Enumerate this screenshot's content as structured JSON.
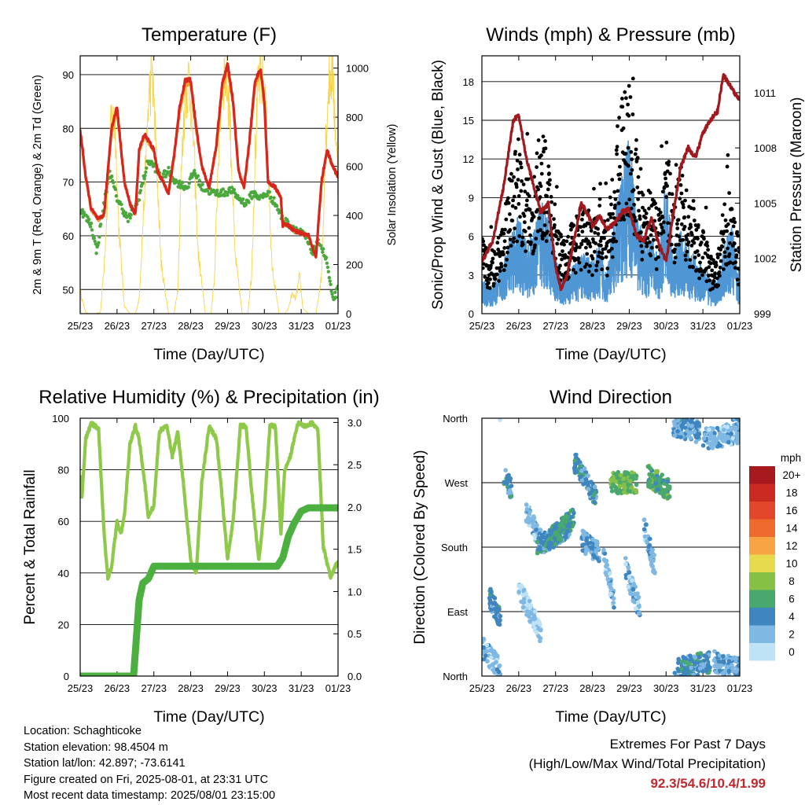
{
  "x_ticks": [
    "25/23",
    "26/23",
    "27/23",
    "28/23",
    "29/23",
    "30/23",
    "31/23",
    "01/23"
  ],
  "info": {
    "location": "Location: Schaghticoke",
    "elevation": "Station elevation: 98.4504 m",
    "latlon": "Station lat/lon: 42.897; -73.6141",
    "created": "Figure created on Fri, 2025-08-01, at 23:31 UTC",
    "recent": "Most recent data timestamp: 2025/08/01 23:15:00"
  },
  "extremes": {
    "line1": "Extremes For Past 7 Days",
    "line2": "(High/Low/Max Wind/Total Precipitation)",
    "values": "92.3/54.6/10.4/1.99"
  },
  "chart_data": [
    {
      "id": "temperature",
      "type": "line",
      "title": "Temperature (F)",
      "xlabel": "Time (Day/UTC)",
      "ylabel": "2m & 9m T (Red, Orange) & 2m Td (Green)",
      "y2label": "Solar Insolation (Yellow)",
      "x_range_days": [
        0,
        7
      ],
      "ylim": [
        45.5,
        93.5
      ],
      "y_ticks": [
        50,
        60,
        70,
        80,
        90
      ],
      "y2lim": [
        0,
        1050
      ],
      "y2_ticks": [
        0,
        200,
        400,
        600,
        800,
        1000
      ],
      "grid": true,
      "colors": {
        "t2m": "#d7261e",
        "t9m": "#f39c34",
        "td": "#4aa83d",
        "solar": "#f7d54a"
      },
      "series": [
        {
          "key": "t2m",
          "x": [
            0,
            0.05,
            0.15,
            0.3,
            0.5,
            0.65,
            0.85,
            1.0,
            1.2,
            1.35,
            1.5,
            1.6,
            1.75,
            2.0,
            2.1,
            2.4,
            2.55,
            2.7,
            2.85,
            3.0,
            3.15,
            3.3,
            3.5,
            3.7,
            3.85,
            4.0,
            4.15,
            4.3,
            4.45,
            4.6,
            4.75,
            4.9,
            5.0,
            5.1,
            5.3,
            5.45,
            5.5,
            5.65,
            5.8,
            6.0,
            6.2,
            6.4,
            6.55,
            6.7,
            6.85,
            7.0
          ],
          "values": [
            79.5,
            77,
            71,
            65,
            63,
            64,
            80,
            84,
            70,
            66,
            64,
            76,
            79,
            76,
            72,
            68,
            75,
            84,
            89,
            89,
            80,
            73,
            69,
            77,
            88,
            92,
            85,
            72,
            69,
            78,
            89,
            91,
            85,
            70,
            69,
            67,
            62,
            62,
            61,
            60.5,
            60,
            56,
            70,
            76,
            73,
            71
          ]
        },
        {
          "key": "t9m",
          "x": [
            0,
            0.05,
            0.15,
            0.3,
            0.5,
            0.65,
            0.85,
            1.0,
            1.2,
            1.35,
            1.5,
            1.6,
            1.75,
            2.0,
            2.1,
            2.4,
            2.55,
            2.7,
            2.85,
            3.0,
            3.15,
            3.3,
            3.5,
            3.7,
            3.85,
            4.0,
            4.15,
            4.3,
            4.45,
            4.6,
            4.75,
            4.9,
            5.0,
            5.1,
            5.3,
            5.45,
            5.5,
            5.65,
            5.8,
            6.0,
            6.2,
            6.4,
            6.55,
            6.7,
            6.85,
            7.0
          ],
          "values": [
            79,
            76.5,
            70.5,
            64.8,
            63,
            63.8,
            79,
            83,
            70,
            66,
            64,
            75.5,
            78.5,
            75.8,
            72,
            68,
            74.5,
            83,
            88,
            88.5,
            79.5,
            73,
            69,
            76.5,
            87,
            91,
            84.5,
            72,
            69,
            77.5,
            88,
            90.5,
            84.5,
            70,
            69,
            67,
            62,
            62,
            61,
            60.5,
            60,
            56,
            69.5,
            75.5,
            73,
            71
          ]
        },
        {
          "key": "td",
          "x": [
            0,
            0.1,
            0.3,
            0.45,
            0.6,
            0.8,
            1.0,
            1.3,
            1.55,
            1.7,
            1.85,
            2.0,
            2.2,
            2.4,
            2.6,
            2.9,
            3.1,
            3.3,
            3.6,
            3.9,
            4.1,
            4.3,
            4.5,
            4.7,
            4.9,
            5.1,
            5.3,
            5.5,
            5.7,
            5.9,
            6.1,
            6.3,
            6.4,
            6.5,
            6.7,
            6.85,
            7.0
          ],
          "values": [
            65,
            64,
            62,
            57,
            64,
            72,
            67,
            63,
            66,
            70,
            74,
            73,
            71,
            72,
            70,
            69,
            72,
            69,
            68,
            68,
            68.5,
            67,
            66,
            68,
            67,
            68,
            66,
            63,
            62,
            61,
            60,
            57,
            58,
            59,
            55,
            48,
            50
          ]
        },
        {
          "key": "solar",
          "x": [
            0,
            0.05,
            0.15,
            0.25,
            0.4,
            0.55,
            0.65,
            0.75,
            0.85,
            0.95,
            1.05,
            1.2,
            1.35,
            1.5,
            1.6,
            1.75,
            1.85,
            1.95,
            2.05,
            2.2,
            2.4,
            2.55,
            2.65,
            2.75,
            2.85,
            2.95,
            3.05,
            3.2,
            3.4,
            3.55,
            3.65,
            3.75,
            3.85,
            3.95,
            4.05,
            4.2,
            4.4,
            4.55,
            4.65,
            4.75,
            4.85,
            4.95,
            5.05,
            5.2,
            5.4,
            5.55,
            5.65,
            5.75,
            5.85,
            5.95,
            6.05,
            6.2,
            6.4,
            6.55,
            6.65,
            6.75,
            6.85,
            6.95,
            7.0
          ],
          "values": [
            100,
            60,
            5,
            0,
            0,
            5,
            200,
            500,
            800,
            750,
            350,
            30,
            0,
            0,
            60,
            500,
            850,
            1000,
            700,
            200,
            0,
            0,
            100,
            600,
            900,
            950,
            800,
            250,
            0,
            0,
            150,
            650,
            950,
            980,
            850,
            250,
            0,
            0,
            150,
            650,
            950,
            950,
            800,
            200,
            0,
            0,
            20,
            80,
            60,
            150,
            20,
            0,
            0,
            150,
            650,
            950,
            1000,
            700,
            500
          ]
        }
      ]
    },
    {
      "id": "winds",
      "type": "scatter",
      "title": "Winds (mph) & Pressure (mb)",
      "xlabel": "Time (Day/UTC)",
      "ylabel": "Sonic/Prop Wind & Gust (Blue, Black)",
      "y2label": "Station Pressure (Maroon)",
      "x_range_days": [
        0,
        7
      ],
      "ylim": [
        0,
        20
      ],
      "y_ticks": [
        0,
        3,
        6,
        9,
        12,
        15,
        18
      ],
      "y2lim": [
        999,
        1013
      ],
      "y2_ticks": [
        999,
        1002,
        1005,
        1008,
        1011
      ],
      "grid": true,
      "colors": {
        "wind": "#4f97d4",
        "gust": "#000000",
        "pressure": "#a0191f"
      },
      "series": [
        {
          "key": "wind",
          "x": [
            0,
            0.2,
            0.4,
            0.6,
            0.8,
            1.0,
            1.2,
            1.4,
            1.6,
            1.8,
            2.0,
            2.2,
            2.4,
            2.6,
            2.8,
            3.0,
            3.2,
            3.4,
            3.6,
            3.8,
            4.0,
            4.2,
            4.4,
            4.6,
            4.8,
            5.0,
            5.2,
            5.4,
            5.6,
            5.8,
            6.0,
            6.2,
            6.4,
            6.6,
            6.8,
            7.0
          ],
          "values": [
            2,
            1.5,
            2,
            3,
            5,
            5.5,
            4,
            4.5,
            6.5,
            6,
            3,
            2,
            2.5,
            3,
            3.5,
            3,
            4,
            2.5,
            5.5,
            8,
            10,
            6,
            4,
            4.5,
            3,
            8,
            3,
            5,
            4,
            3,
            3,
            2,
            2,
            4,
            5,
            2
          ]
        },
        {
          "key": "gust",
          "x": [
            0,
            0.2,
            0.4,
            0.6,
            0.8,
            1.0,
            1.2,
            1.4,
            1.6,
            1.8,
            2.0,
            2.2,
            2.4,
            2.6,
            2.8,
            3.0,
            3.2,
            3.4,
            3.6,
            3.8,
            4.0,
            4.2,
            4.4,
            4.6,
            4.8,
            5.0,
            5.2,
            5.4,
            5.6,
            5.8,
            6.0,
            6.2,
            6.4,
            6.6,
            6.8,
            7.0
          ],
          "values": [
            6,
            3,
            5,
            7,
            10,
            12,
            10,
            9,
            13,
            11,
            7,
            5,
            6,
            7,
            8,
            6,
            8,
            6,
            11,
            15,
            16,
            12,
            8,
            9,
            7,
            12,
            8,
            10,
            8,
            6,
            6,
            4,
            4,
            8,
            9,
            4
          ]
        },
        {
          "key": "pressure",
          "x": [
            0,
            0.3,
            0.6,
            0.85,
            1.0,
            1.2,
            1.4,
            1.6,
            1.8,
            2.0,
            2.15,
            2.3,
            2.5,
            2.7,
            2.9,
            3.0,
            3.2,
            3.4,
            3.6,
            3.8,
            4.0,
            4.2,
            4.4,
            4.6,
            4.8,
            5.0,
            5.2,
            5.4,
            5.6,
            5.8,
            6.0,
            6.2,
            6.4,
            6.55,
            6.7,
            6.85,
            7.0
          ],
          "values": [
            1001.8,
            1003,
            1006,
            1009.5,
            1009.8,
            1007.5,
            1006,
            1004.5,
            1005,
            1001.5,
            1000.3,
            1001,
            1003,
            1005,
            1004.3,
            1003.8,
            1004.3,
            1003.6,
            1003.9,
            1004.5,
            1004.7,
            1003.2,
            1003,
            1004.2,
            1002.8,
            1001.8,
            1004.5,
            1007,
            1008,
            1007.5,
            1008.8,
            1009.5,
            1010,
            1012,
            1011.5,
            1011,
            1010.6
          ]
        }
      ]
    },
    {
      "id": "humidity",
      "type": "line",
      "title": "Relative Humidity (%) & Precipitation (in)",
      "xlabel": "Time (Day/UTC)",
      "ylabel": "Percent & Total Rainfall",
      "x_range_days": [
        0,
        7
      ],
      "ylim": [
        0,
        100
      ],
      "y_ticks": [
        0,
        20,
        40,
        60,
        80,
        100
      ],
      "y2lim": [
        0,
        3.05
      ],
      "y2_ticks": [
        "0.0",
        "0.5",
        "1.0",
        "1.5",
        "2.0",
        "2.5",
        "3.0"
      ],
      "grid": true,
      "colors": {
        "rh": "#8ec94a",
        "precip": "#4cb040"
      },
      "series": [
        {
          "key": "rh",
          "x": [
            0,
            0.05,
            0.15,
            0.3,
            0.5,
            0.65,
            0.75,
            0.85,
            1.0,
            1.1,
            1.2,
            1.35,
            1.5,
            1.6,
            1.75,
            1.85,
            2.0,
            2.15,
            2.35,
            2.5,
            2.65,
            2.8,
            3.0,
            3.15,
            3.3,
            3.5,
            3.7,
            3.85,
            4.0,
            4.15,
            4.35,
            4.5,
            4.7,
            4.85,
            5.0,
            5.15,
            5.3,
            5.45,
            5.55,
            5.7,
            5.9,
            6.1,
            6.3,
            6.45,
            6.6,
            6.8,
            6.9,
            7.0
          ],
          "values": [
            77,
            70,
            92,
            98,
            96,
            55,
            38,
            42,
            60,
            55,
            62,
            90,
            97,
            92,
            75,
            62,
            66,
            95,
            97,
            85,
            95,
            75,
            45,
            40,
            75,
            97,
            92,
            70,
            45,
            60,
            97,
            97,
            65,
            45,
            65,
            97,
            97,
            55,
            80,
            85,
            98,
            97,
            98,
            96,
            50,
            38,
            42,
            44
          ]
        },
        {
          "key": "precip",
          "x": [
            0,
            0.5,
            1.0,
            1.45,
            1.5,
            1.6,
            1.7,
            1.85,
            2.0,
            2.2,
            2.5,
            3.0,
            3.5,
            4.0,
            4.5,
            5.0,
            5.35,
            5.5,
            5.65,
            5.8,
            6.0,
            6.2,
            6.5,
            6.8,
            7.0
          ],
          "values": [
            0,
            0,
            0,
            0,
            0.3,
            0.9,
            1.1,
            1.15,
            1.3,
            1.3,
            1.3,
            1.3,
            1.3,
            1.3,
            1.3,
            1.3,
            1.3,
            1.4,
            1.65,
            1.8,
            1.95,
            1.99,
            1.99,
            1.99,
            1.99
          ]
        }
      ]
    },
    {
      "id": "direction",
      "type": "scatter",
      "title": "Wind Direction",
      "xlabel": "Time (Day/UTC)",
      "ylabel": "Direction (Colored By Speed)",
      "x_range_days": [
        0,
        7
      ],
      "y_ticks": [
        "North",
        "East",
        "South",
        "West",
        "North"
      ],
      "grid": true,
      "legend": {
        "title": "mph",
        "position": "right",
        "labels": [
          "20+",
          "18",
          "16",
          "14",
          "12",
          "10",
          "8",
          "6",
          "4",
          "2",
          "0"
        ],
        "colors": [
          "#a5191f",
          "#cb2a22",
          "#e0472b",
          "#ef6a2d",
          "#f8a444",
          "#e7db4d",
          "#86c045",
          "#48a86d",
          "#3f86c0",
          "#7fb8e2",
          "#bfe3f6"
        ]
      },
      "segments": [
        {
          "x0": 0,
          "x1": 0.5,
          "dir0": 40,
          "dir1": 10,
          "speed": 2
        },
        {
          "x0": 0.2,
          "x1": 0.5,
          "dir0": 110,
          "dir1": 80,
          "speed": 4
        },
        {
          "x0": 0.6,
          "x1": 0.8,
          "dir0": 280,
          "dir1": 260,
          "speed": 4
        },
        {
          "x0": 1.0,
          "x1": 1.6,
          "dir0": 120,
          "dir1": 60,
          "speed": 1
        },
        {
          "x0": 1.2,
          "x1": 1.6,
          "dir0": 230,
          "dir1": 190,
          "speed": 2
        },
        {
          "x0": 1.5,
          "x1": 2.4,
          "dir0": 180,
          "dir1": 210,
          "speed": 4
        },
        {
          "x0": 1.8,
          "x1": 2.5,
          "dir0": 190,
          "dir1": 220,
          "speed": 5
        },
        {
          "x0": 2.5,
          "x1": 3.1,
          "dir0": 300,
          "dir1": 250,
          "speed": 4
        },
        {
          "x0": 2.7,
          "x1": 3.2,
          "dir0": 190,
          "dir1": 170,
          "speed": 3
        },
        {
          "x0": 3.3,
          "x1": 3.6,
          "dir0": 170,
          "dir1": 100,
          "speed": 2
        },
        {
          "x0": 3.5,
          "x1": 4.2,
          "dir0": 270,
          "dir1": 270,
          "speed": 7
        },
        {
          "x0": 3.9,
          "x1": 4.3,
          "dir0": 150,
          "dir1": 90,
          "speed": 2
        },
        {
          "x0": 4.5,
          "x1": 5.1,
          "dir0": 280,
          "dir1": 260,
          "speed": 6
        },
        {
          "x0": 4.4,
          "x1": 4.7,
          "dir0": 210,
          "dir1": 150,
          "speed": 2
        },
        {
          "x0": 5.2,
          "x1": 5.9,
          "dir0": 350,
          "dir1": 340,
          "speed": 3
        },
        {
          "x0": 5.3,
          "x1": 6.2,
          "dir0": 10,
          "dir1": 20,
          "speed": 4
        },
        {
          "x0": 6.0,
          "x1": 7.0,
          "dir0": 330,
          "dir1": 340,
          "speed": 2
        },
        {
          "x0": 6.3,
          "x1": 7.0,
          "dir0": 20,
          "dir1": 10,
          "speed": 3
        }
      ]
    }
  ]
}
